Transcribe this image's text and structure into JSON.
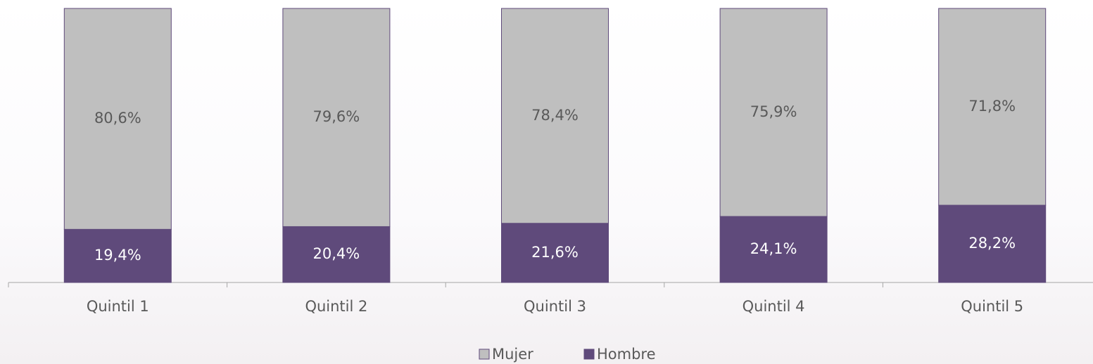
{
  "chart_data": {
    "type": "stacked_bar",
    "categories": [
      "Quintil 1",
      "Quintil 2",
      "Quintil 3",
      "Quintil 4",
      "Quintil 5"
    ],
    "series": [
      {
        "name": "Hombre",
        "color": "#5f4a7b",
        "values": [
          19.4,
          20.4,
          21.6,
          24.1,
          28.2
        ],
        "value_labels": [
          "19,4%",
          "20,4%",
          "21,6%",
          "24,1%",
          "28,2%"
        ]
      },
      {
        "name": "Mujer",
        "color": "#bfbfbf",
        "values": [
          80.6,
          79.6,
          78.4,
          75.9,
          71.8
        ],
        "value_labels": [
          "80,6%",
          "79,6%",
          "78,4%",
          "75,9%",
          "71,8%"
        ]
      }
    ],
    "ylim": [
      0,
      100
    ]
  }
}
